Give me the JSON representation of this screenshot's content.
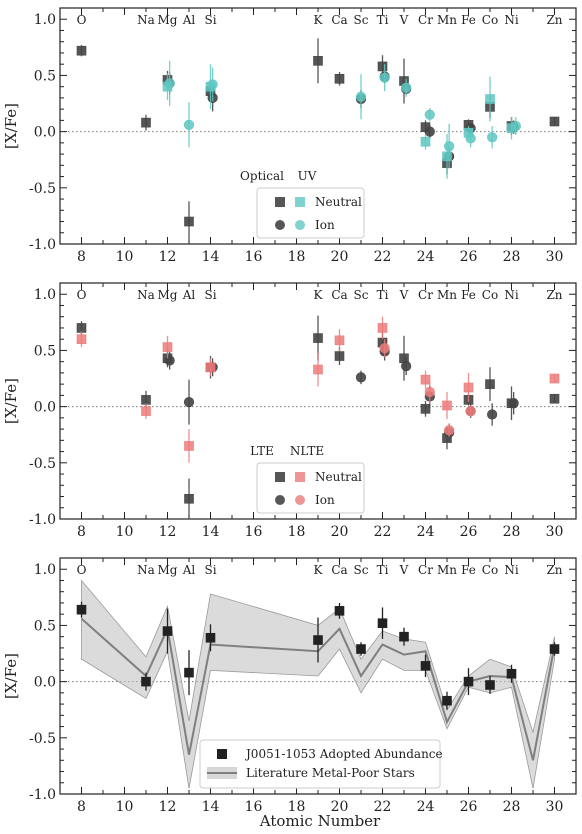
{
  "chart_data": [
    {
      "type": "scatter",
      "xlim": [
        7,
        31
      ],
      "ylim": [
        -1.0,
        1.1
      ],
      "ylabel": "[X/Fe]",
      "xticks": [
        8,
        10,
        12,
        14,
        16,
        18,
        20,
        22,
        24,
        26,
        28,
        30
      ],
      "yticks": [
        1.0,
        0.5,
        0.0,
        -0.5,
        -1.0
      ],
      "element_labels": [
        {
          "z": 8,
          "label": "O"
        },
        {
          "z": 11,
          "label": "Na"
        },
        {
          "z": 12,
          "label": "Mg"
        },
        {
          "z": 13,
          "label": "Al"
        },
        {
          "z": 14,
          "label": "Si"
        },
        {
          "z": 19,
          "label": "K"
        },
        {
          "z": 20,
          "label": "Ca"
        },
        {
          "z": 21,
          "label": "Sc"
        },
        {
          "z": 22,
          "label": "Ti"
        },
        {
          "z": 23,
          "label": "V"
        },
        {
          "z": 24,
          "label": "Cr"
        },
        {
          "z": 25,
          "label": "Mn"
        },
        {
          "z": 26,
          "label": "Fe"
        },
        {
          "z": 27,
          "label": "Co"
        },
        {
          "z": 28,
          "label": "Ni"
        },
        {
          "z": 30,
          "label": "Zn"
        }
      ],
      "legend": {
        "col1": "Optical",
        "col2": "UV",
        "row1": "Neutral",
        "row2": "Ion"
      },
      "series": [
        {
          "color": "#444444",
          "marker": "square",
          "points": [
            {
              "x": 8,
              "y": 0.72,
              "err": 0.05
            },
            {
              "x": 11,
              "y": 0.08,
              "err": 0.07
            },
            {
              "x": 12,
              "y": 0.46,
              "err": 0.08
            },
            {
              "x": 13,
              "y": -0.8,
              "err": 0.18
            },
            {
              "x": 14,
              "y": 0.36,
              "err": 0.1
            },
            {
              "x": 19,
              "y": 0.63,
              "err": 0.2
            },
            {
              "x": 20,
              "y": 0.47,
              "err": 0.06
            },
            {
              "x": 22,
              "y": 0.58,
              "err": 0.1
            },
            {
              "x": 23,
              "y": 0.45,
              "err": 0.2
            },
            {
              "x": 24,
              "y": 0.04,
              "err": 0.06
            },
            {
              "x": 25,
              "y": -0.28,
              "err": 0.1
            },
            {
              "x": 26,
              "y": 0.06,
              "err": 0.05
            },
            {
              "x": 27,
              "y": 0.22,
              "err": 0.1
            },
            {
              "x": 28,
              "y": 0.05,
              "err": 0.08
            },
            {
              "x": 30,
              "y": 0.09,
              "err": 0.04
            }
          ]
        },
        {
          "color": "#444444",
          "marker": "circle",
          "points": [
            {
              "x": 12.1,
              "y": 0.43,
              "err": 0.1
            },
            {
              "x": 14.1,
              "y": 0.3,
              "err": 0.12
            },
            {
              "x": 21,
              "y": 0.29,
              "err": 0.08
            },
            {
              "x": 22.1,
              "y": 0.49,
              "err": 0.06
            },
            {
              "x": 23.1,
              "y": 0.38,
              "err": 0.05
            },
            {
              "x": 24.2,
              "y": 0.0,
              "err": 0.06
            },
            {
              "x": 25.1,
              "y": -0.22,
              "err": 0.08
            },
            {
              "x": 26.1,
              "y": 0.03,
              "err": 0.05
            },
            {
              "x": 28.1,
              "y": 0.04,
              "err": 0.06
            }
          ]
        },
        {
          "color": "#5fc7c2",
          "marker": "square",
          "points": [
            {
              "x": 12,
              "y": 0.4,
              "err": 0.12
            },
            {
              "x": 14,
              "y": 0.4,
              "err": 0.2
            },
            {
              "x": 24,
              "y": -0.09,
              "err": 0.07
            },
            {
              "x": 25,
              "y": -0.22,
              "err": 0.2
            },
            {
              "x": 26,
              "y": -0.01,
              "err": 0.06
            },
            {
              "x": 27,
              "y": 0.29,
              "err": 0.2
            },
            {
              "x": 28,
              "y": 0.03,
              "err": 0.1
            }
          ]
        },
        {
          "color": "#5fc7c2",
          "marker": "circle",
          "points": [
            {
              "x": 12.1,
              "y": 0.43,
              "err": 0.2
            },
            {
              "x": 13,
              "y": 0.06,
              "err": 0.2
            },
            {
              "x": 14.1,
              "y": 0.42,
              "err": 0.15
            },
            {
              "x": 21,
              "y": 0.31,
              "err": 0.2
            },
            {
              "x": 22.1,
              "y": 0.48,
              "err": 0.12
            },
            {
              "x": 23.1,
              "y": 0.39,
              "err": 0.08
            },
            {
              "x": 24.2,
              "y": 0.15,
              "err": 0.06
            },
            {
              "x": 25.1,
              "y": -0.13,
              "err": 0.2
            },
            {
              "x": 26.1,
              "y": -0.06,
              "err": 0.08
            },
            {
              "x": 27.1,
              "y": -0.05,
              "err": 0.1
            },
            {
              "x": 28.2,
              "y": 0.05,
              "err": 0.08
            }
          ]
        }
      ]
    },
    {
      "type": "scatter",
      "xlim": [
        7,
        31
      ],
      "ylim": [
        -1.0,
        1.1
      ],
      "ylabel": "[X/Fe]",
      "xticks": [
        8,
        10,
        12,
        14,
        16,
        18,
        20,
        22,
        24,
        26,
        28,
        30
      ],
      "yticks": [
        1.0,
        0.5,
        0.0,
        -0.5,
        -1.0
      ],
      "element_labels": [
        {
          "z": 8,
          "label": "O"
        },
        {
          "z": 11,
          "label": "Na"
        },
        {
          "z": 12,
          "label": "Mg"
        },
        {
          "z": 13,
          "label": "Al"
        },
        {
          "z": 14,
          "label": "Si"
        },
        {
          "z": 19,
          "label": "K"
        },
        {
          "z": 20,
          "label": "Ca"
        },
        {
          "z": 21,
          "label": "Sc"
        },
        {
          "z": 22,
          "label": "Ti"
        },
        {
          "z": 23,
          "label": "V"
        },
        {
          "z": 24,
          "label": "Cr"
        },
        {
          "z": 25,
          "label": "Mn"
        },
        {
          "z": 26,
          "label": "Fe"
        },
        {
          "z": 27,
          "label": "Co"
        },
        {
          "z": 28,
          "label": "Ni"
        },
        {
          "z": 30,
          "label": "Zn"
        }
      ],
      "legend": {
        "col1": "LTE",
        "col2": "NLTE",
        "row1": "Neutral",
        "row2": "Ion"
      },
      "series": [
        {
          "color": "#444444",
          "marker": "square",
          "points": [
            {
              "x": 8,
              "y": 0.7,
              "err": 0.06
            },
            {
              "x": 11,
              "y": 0.06,
              "err": 0.08
            },
            {
              "x": 12,
              "y": 0.43,
              "err": 0.08
            },
            {
              "x": 13,
              "y": -0.82,
              "err": 0.18
            },
            {
              "x": 14,
              "y": 0.35,
              "err": 0.1
            },
            {
              "x": 19,
              "y": 0.61,
              "err": 0.2
            },
            {
              "x": 20,
              "y": 0.45,
              "err": 0.08
            },
            {
              "x": 22,
              "y": 0.57,
              "err": 0.1
            },
            {
              "x": 23,
              "y": 0.43,
              "err": 0.2
            },
            {
              "x": 24,
              "y": -0.02,
              "err": 0.07
            },
            {
              "x": 25,
              "y": -0.28,
              "err": 0.1
            },
            {
              "x": 26,
              "y": 0.06,
              "err": 0.05
            },
            {
              "x": 27,
              "y": 0.2,
              "err": 0.15
            },
            {
              "x": 28,
              "y": 0.03,
              "err": 0.15
            },
            {
              "x": 30,
              "y": 0.07,
              "err": 0.04
            }
          ]
        },
        {
          "color": "#444444",
          "marker": "circle",
          "points": [
            {
              "x": 12.1,
              "y": 0.41,
              "err": 0.08
            },
            {
              "x": 13,
              "y": 0.04,
              "err": 0.2
            },
            {
              "x": 14.1,
              "y": 0.35,
              "err": 0.08
            },
            {
              "x": 21,
              "y": 0.26,
              "err": 0.06
            },
            {
              "x": 22.1,
              "y": 0.49,
              "err": 0.08
            },
            {
              "x": 23.1,
              "y": 0.36,
              "err": 0.08
            },
            {
              "x": 24.2,
              "y": 0.09,
              "err": 0.1
            },
            {
              "x": 25.1,
              "y": -0.23,
              "err": 0.08
            },
            {
              "x": 26.1,
              "y": -0.04,
              "err": 0.06
            },
            {
              "x": 27.1,
              "y": -0.07,
              "err": 0.1
            },
            {
              "x": 28.1,
              "y": 0.03,
              "err": 0.1
            }
          ]
        },
        {
          "color": "#ec7b7b",
          "marker": "square",
          "points": [
            {
              "x": 8,
              "y": 0.6,
              "err": 0.07
            },
            {
              "x": 11,
              "y": -0.04,
              "err": 0.07
            },
            {
              "x": 12,
              "y": 0.53,
              "err": 0.1
            },
            {
              "x": 13,
              "y": -0.35,
              "err": 0.15
            },
            {
              "x": 14,
              "y": 0.35,
              "err": 0.08
            },
            {
              "x": 19,
              "y": 0.33,
              "err": 0.15
            },
            {
              "x": 20,
              "y": 0.59,
              "err": 0.1
            },
            {
              "x": 22,
              "y": 0.7,
              "err": 0.1
            },
            {
              "x": 24,
              "y": 0.24,
              "err": 0.08
            },
            {
              "x": 25,
              "y": 0.01,
              "err": 0.12
            },
            {
              "x": 26,
              "y": 0.17,
              "err": 0.13
            },
            {
              "x": 30,
              "y": 0.25,
              "err": 0.04
            }
          ]
        },
        {
          "color": "#ec7b7b",
          "marker": "circle",
          "points": [
            {
              "x": 22.1,
              "y": 0.52,
              "err": 0.08
            },
            {
              "x": 24.2,
              "y": 0.13,
              "err": 0.1
            },
            {
              "x": 25.1,
              "y": -0.21,
              "err": 0.06
            },
            {
              "x": 26.1,
              "y": -0.04,
              "err": 0.05
            }
          ]
        }
      ]
    },
    {
      "type": "scatter",
      "xlim": [
        7,
        31
      ],
      "ylim": [
        -1.0,
        1.1
      ],
      "ylabel": "[X/Fe]",
      "xlabel": "Atomic Number",
      "xticks": [
        8,
        10,
        12,
        14,
        16,
        18,
        20,
        22,
        24,
        26,
        28,
        30
      ],
      "yticks": [
        1.0,
        0.5,
        0.0,
        -0.5,
        -1.0
      ],
      "element_labels": [
        {
          "z": 8,
          "label": "O"
        },
        {
          "z": 11,
          "label": "Na"
        },
        {
          "z": 12,
          "label": "Mg"
        },
        {
          "z": 13,
          "label": "Al"
        },
        {
          "z": 14,
          "label": "Si"
        },
        {
          "z": 19,
          "label": "K"
        },
        {
          "z": 20,
          "label": "Ca"
        },
        {
          "z": 21,
          "label": "Sc"
        },
        {
          "z": 22,
          "label": "Ti"
        },
        {
          "z": 23,
          "label": "V"
        },
        {
          "z": 24,
          "label": "Cr"
        },
        {
          "z": 25,
          "label": "Mn"
        },
        {
          "z": 26,
          "label": "Fe"
        },
        {
          "z": 27,
          "label": "Co"
        },
        {
          "z": 28,
          "label": "Ni"
        },
        {
          "z": 30,
          "label": "Zn"
        }
      ],
      "legend_entries": [
        "J0051-1053 Adopted Abundance",
        "Literature Metal-Poor Stars"
      ],
      "adopted": [
        {
          "x": 8,
          "y": 0.64,
          "err": 0.07
        },
        {
          "x": 11,
          "y": 0.0,
          "err": 0.08
        },
        {
          "x": 12,
          "y": 0.45,
          "err": 0.2
        },
        {
          "x": 13,
          "y": 0.08,
          "err": 0.2
        },
        {
          "x": 14,
          "y": 0.39,
          "err": 0.12
        },
        {
          "x": 19,
          "y": 0.37,
          "err": 0.2
        },
        {
          "x": 20,
          "y": 0.63,
          "err": 0.07
        },
        {
          "x": 21,
          "y": 0.29,
          "err": 0.06
        },
        {
          "x": 22,
          "y": 0.52,
          "err": 0.14
        },
        {
          "x": 23,
          "y": 0.4,
          "err": 0.08
        },
        {
          "x": 24,
          "y": 0.14,
          "err": 0.1
        },
        {
          "x": 25,
          "y": -0.17,
          "err": 0.08
        },
        {
          "x": 26,
          "y": 0.0,
          "err": 0.12
        },
        {
          "x": 27,
          "y": -0.03,
          "err": 0.08
        },
        {
          "x": 28,
          "y": 0.07,
          "err": 0.08
        },
        {
          "x": 30,
          "y": 0.29,
          "err": 0.06
        }
      ],
      "literature_x": [
        8,
        11,
        12,
        13,
        14,
        19,
        20,
        21,
        22,
        23,
        24,
        25,
        26,
        27,
        28,
        29,
        30
      ],
      "literature_y": [
        0.56,
        0.05,
        0.47,
        -0.65,
        0.33,
        0.27,
        0.47,
        0.05,
        0.33,
        0.24,
        0.27,
        -0.36,
        0.0,
        0.05,
        0.04,
        -0.7,
        0.32
      ],
      "literature_lo": [
        0.2,
        -0.15,
        0.27,
        -0.95,
        0.1,
        0.05,
        0.29,
        -0.1,
        0.2,
        0.1,
        0.1,
        -0.42,
        -0.05,
        -0.1,
        -0.05,
        -0.95,
        0.2
      ],
      "literature_hi": [
        0.9,
        0.22,
        0.67,
        -0.35,
        0.78,
        0.5,
        0.65,
        0.2,
        0.45,
        0.38,
        0.35,
        -0.25,
        0.05,
        0.2,
        0.13,
        -0.45,
        0.4
      ]
    }
  ]
}
